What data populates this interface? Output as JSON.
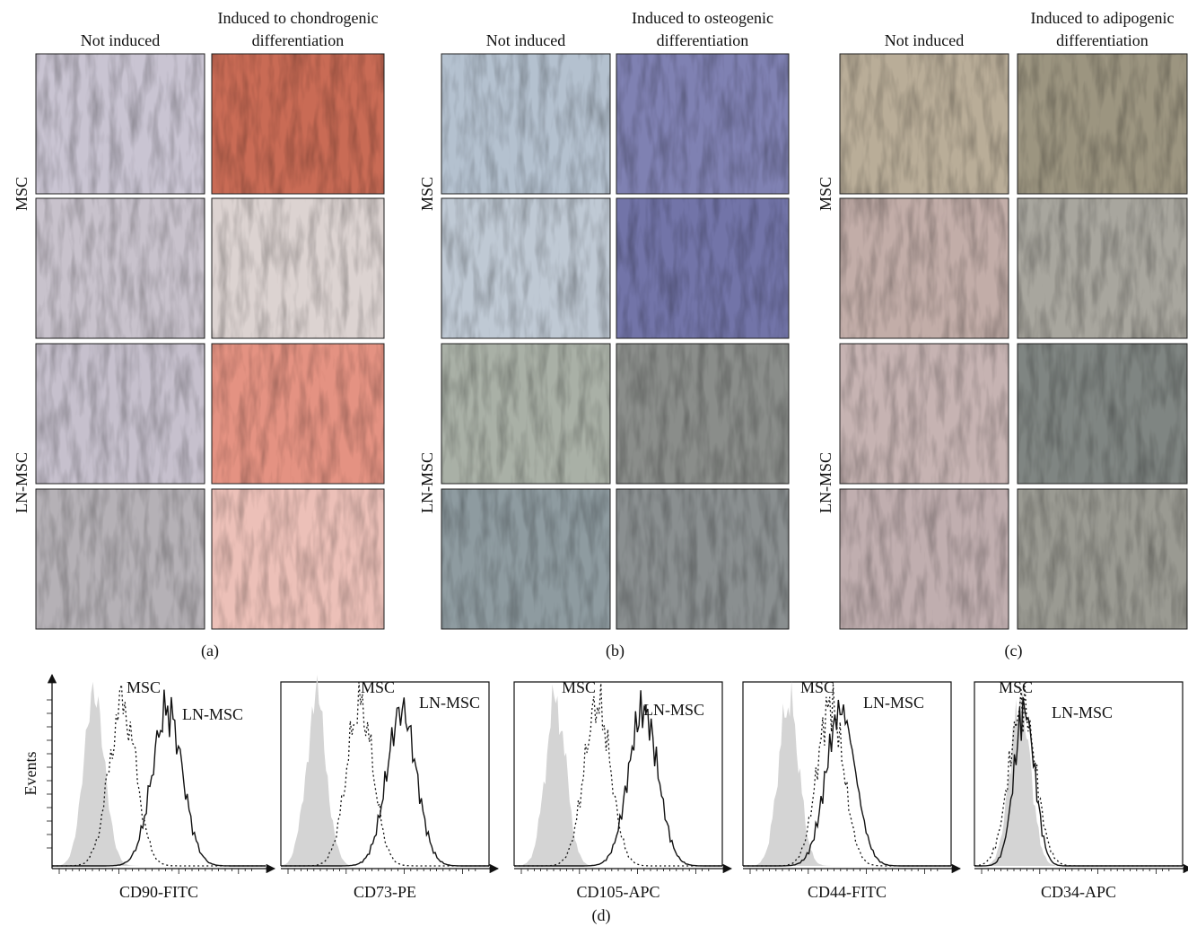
{
  "panels": [
    {
      "caption": "(a)",
      "row_labels": [
        "MSC",
        "LN-MSC"
      ],
      "column_headers": [
        [
          "Not induced"
        ],
        [
          "Induced to chondrogenic",
          "differentiation"
        ]
      ]
    },
    {
      "caption": "(b)",
      "row_labels": [
        "MSC",
        "LN-MSC"
      ],
      "column_headers": [
        [
          "Not induced"
        ],
        [
          "Induced to osteogenic",
          "differentiation"
        ]
      ]
    },
    {
      "caption": "(c)",
      "row_labels": [
        "MSC",
        "LN-MSC"
      ],
      "column_headers": [
        [
          "Not induced"
        ],
        [
          "Induced to adipogenic",
          "differentiation"
        ]
      ]
    }
  ],
  "flow": {
    "y_label": "Events",
    "caption": "(d)",
    "plots": [
      {
        "x_label": "CD90-FITC",
        "annotations": [
          "MSC",
          "LN-MSC"
        ]
      },
      {
        "x_label": "CD73-PE",
        "annotations": [
          "MSC",
          "LN-MSC"
        ]
      },
      {
        "x_label": "CD105-APC",
        "annotations": [
          "MSC",
          "LN-MSC"
        ]
      },
      {
        "x_label": "CD44-FITC",
        "annotations": [
          "MSC",
          "LN-MSC"
        ]
      },
      {
        "x_label": "CD34-APC",
        "annotations": [
          "MSC",
          "LN-MSC"
        ]
      }
    ]
  }
}
